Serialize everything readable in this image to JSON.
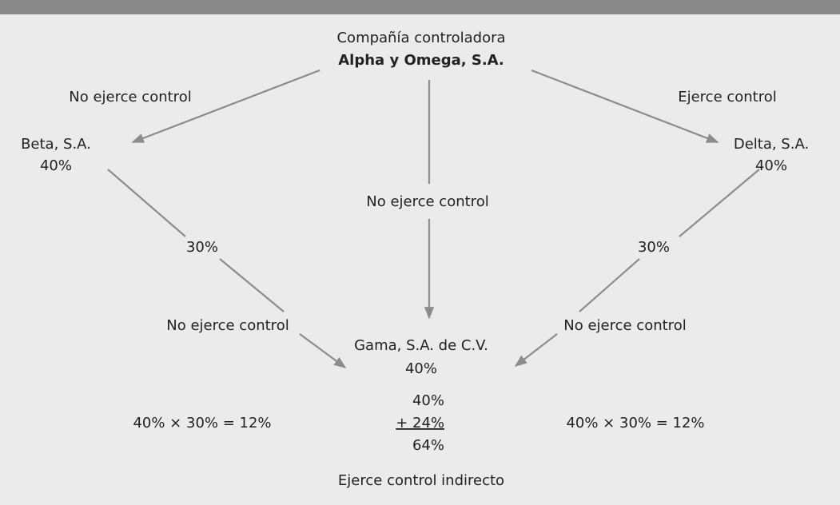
{
  "parent": {
    "caption": "Compañía controladora",
    "name": "Alpha y Omega, S.A."
  },
  "edges": {
    "parent_beta": "No ejerce control",
    "parent_delta": "Ejerce control",
    "parent_gama": "No ejerce control",
    "beta_gama_share": "30%",
    "beta_gama": "No ejerce control",
    "delta_gama_share": "30%",
    "delta_gama": "No ejerce control"
  },
  "nodes": {
    "beta": {
      "name": "Beta, S.A.",
      "share": "40%"
    },
    "delta": {
      "name": "Delta, S.A.",
      "share": "40%"
    },
    "gama": {
      "name": "Gama, S.A. de C.V.",
      "share": "40%"
    }
  },
  "calculation": {
    "left": "40% × 30% = 12%",
    "right": "40% × 30% = 12%",
    "direct": "40%",
    "indirect": "+ 24%",
    "total": "64%",
    "conclusion": "Ejerce control indirecto"
  }
}
